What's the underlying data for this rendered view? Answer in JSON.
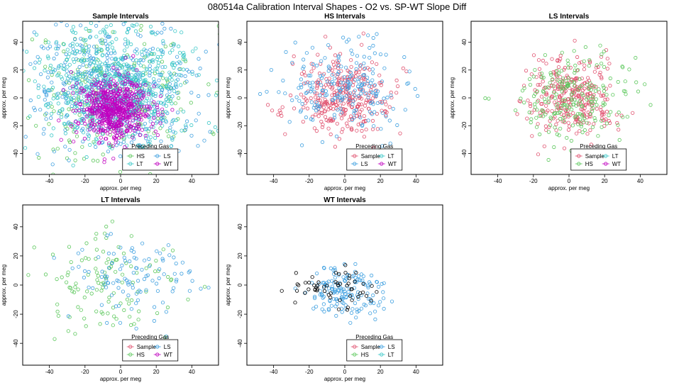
{
  "main_title": "080514a   Calibration Interval Shapes - O2 vs. SP-WT Slope Diff",
  "colors": {
    "Sample": "#e0506e",
    "HS": "#5cc85c",
    "LS": "#3fa0e0",
    "LT": "#3cc8c8",
    "WT": "#c000c0",
    "Black": "#000000"
  },
  "chart_data": [
    {
      "type": "scatter",
      "title": "Sample Intervals",
      "xlabel": "approx. per meg",
      "ylabel": "approx. per meg",
      "xlim": [
        -55,
        55
      ],
      "ylim": [
        -55,
        55
      ],
      "xticks": [
        -40,
        -20,
        0,
        20,
        40
      ],
      "yticks": [
        -40,
        -20,
        0,
        20,
        40
      ],
      "legend": {
        "title": "Preceding Gas",
        "entries": [
          "HS",
          "LS",
          "LT",
          "WT"
        ]
      },
      "series": [
        {
          "name": "HS",
          "color_key": "HS",
          "n": 260,
          "center": [
            -5,
            0
          ],
          "spread": [
            26,
            26
          ],
          "seed": 11
        },
        {
          "name": "LS",
          "color_key": "LS",
          "n": 520,
          "center": [
            -3,
            5
          ],
          "spread": [
            24,
            24
          ],
          "seed": 12
        },
        {
          "name": "LT",
          "color_key": "LT",
          "n": 620,
          "center": [
            -2,
            10
          ],
          "spread": [
            22,
            22
          ],
          "seed": 13
        },
        {
          "name": "WT",
          "color_key": "WT",
          "n": 600,
          "center": [
            -3,
            -8
          ],
          "spread": [
            10,
            11
          ],
          "seed": 14
        }
      ]
    },
    {
      "type": "scatter",
      "title": "HS Intervals",
      "xlabel": "approx. per meg",
      "ylabel": "approx. per meg",
      "xlim": [
        -55,
        55
      ],
      "ylim": [
        -55,
        55
      ],
      "xticks": [
        -40,
        -20,
        0,
        20,
        40
      ],
      "yticks": [
        -40,
        -20,
        0,
        20,
        40
      ],
      "legend": {
        "title": "Preceding Gas",
        "entries": [
          "Sample",
          "LT",
          "LS",
          "WT"
        ]
      },
      "series": [
        {
          "name": "Sample",
          "color_key": "Sample",
          "n": 330,
          "center": [
            0,
            0
          ],
          "spread": [
            14,
            14
          ],
          "seed": 21
        },
        {
          "name": "LS",
          "color_key": "LS",
          "n": 220,
          "center": [
            0,
            8
          ],
          "spread": [
            16,
            15
          ],
          "seed": 22
        }
      ]
    },
    {
      "type": "scatter",
      "title": "LS Intervals",
      "xlabel": "approx. per meg",
      "ylabel": "approx. per meg",
      "xlim": [
        -55,
        55
      ],
      "ylim": [
        -55,
        55
      ],
      "xticks": [
        -40,
        -20,
        0,
        20,
        40
      ],
      "yticks": [
        -40,
        -20,
        0,
        20,
        40
      ],
      "legend": {
        "title": "Preceding Gas",
        "entries": [
          "Sample",
          "LT",
          "HS",
          "WT"
        ]
      },
      "series": [
        {
          "name": "Sample",
          "color_key": "Sample",
          "n": 300,
          "center": [
            0,
            0
          ],
          "spread": [
            13,
            14
          ],
          "seed": 31
        },
        {
          "name": "HS",
          "color_key": "HS",
          "n": 220,
          "center": [
            0,
            0
          ],
          "spread": [
            17,
            16
          ],
          "seed": 32
        }
      ]
    },
    {
      "type": "scatter",
      "title": "LT Intervals",
      "xlabel": "approx. per meg",
      "ylabel": "approx. per meg",
      "xlim": [
        -55,
        55
      ],
      "ylim": [
        -55,
        55
      ],
      "xticks": [
        -40,
        -20,
        0,
        20,
        40
      ],
      "yticks": [
        -40,
        -20,
        0,
        20,
        40
      ],
      "legend": {
        "title": "Preceding Gas",
        "entries": [
          "Sample",
          "LS",
          "HS",
          "WT"
        ]
      },
      "series": [
        {
          "name": "HS",
          "color_key": "HS",
          "n": 120,
          "center": [
            -5,
            0
          ],
          "spread": [
            20,
            18
          ],
          "seed": 41
        },
        {
          "name": "LS",
          "color_key": "LS",
          "n": 110,
          "center": [
            5,
            5
          ],
          "spread": [
            18,
            15
          ],
          "seed": 42
        }
      ]
    },
    {
      "type": "scatter",
      "title": "WT Intervals",
      "xlabel": "approx. per meg",
      "ylabel": "approx. per meg",
      "xlim": [
        -55,
        55
      ],
      "ylim": [
        -55,
        55
      ],
      "xticks": [
        -40,
        -20,
        0,
        20,
        40
      ],
      "yticks": [
        -40,
        -20,
        0,
        20,
        40
      ],
      "legend": {
        "title": "Preceding Gas",
        "entries": [
          "Sample",
          "LS",
          "HS",
          "LT"
        ]
      },
      "series": [
        {
          "name": "LS",
          "color_key": "LS",
          "n": 160,
          "center": [
            0,
            -5
          ],
          "spread": [
            11,
            9
          ],
          "seed": 51
        },
        {
          "name": "Black",
          "color_key": "Black",
          "n": 55,
          "center": [
            -5,
            -3
          ],
          "spread": [
            12,
            7
          ],
          "seed": 52
        }
      ]
    }
  ]
}
